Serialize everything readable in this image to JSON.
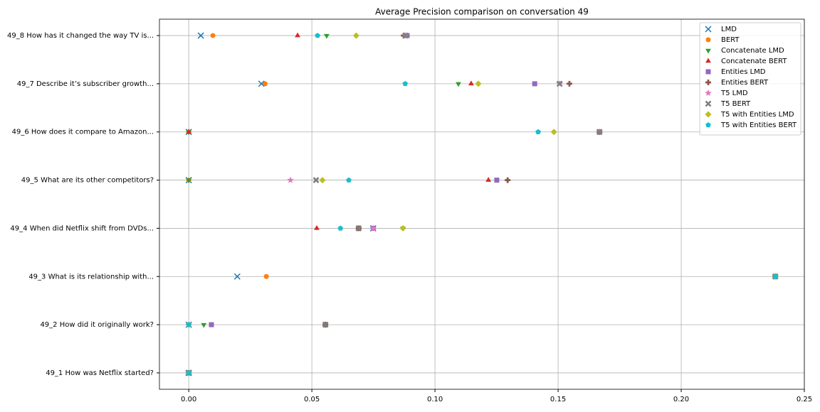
{
  "chart_data": {
    "type": "scatter",
    "title": "Average Precision comparison on conversation 49",
    "categories": [
      "49_1 How was Netflix started?",
      "49_2 How did it originally work?",
      "49_3 What is its relationship with...",
      "49_4 When did Netflix shift from DVDs...",
      "49_5 What are its other competitors?",
      "49_6 How does it compare to Amazon...",
      "49_7 Describe it’s subscriber growth...",
      "49_8 How has it changed the way TV is..."
    ],
    "xlim": [
      -0.0119,
      0.25
    ],
    "xticks": [
      {
        "value": 0,
        "label": "0.00"
      },
      {
        "value": 0.05,
        "label": "0.05"
      },
      {
        "value": 0.1,
        "label": "0.10"
      },
      {
        "value": 0.15,
        "label": "0.15"
      },
      {
        "value": 0.2,
        "label": "0.20"
      },
      {
        "value": 0.25,
        "label": "0.25"
      }
    ],
    "grid": true,
    "legend": "upper right",
    "series": [
      {
        "name": "LMD",
        "color": "#1f77b4",
        "marker": "x",
        "values": [
          0,
          0,
          0.0197,
          0.0749,
          0,
          0,
          0.0295,
          0.0049
        ]
      },
      {
        "name": "BERT",
        "color": "#ff7f0e",
        "marker": "o",
        "values": [
          0,
          0,
          0.0315,
          0.069,
          0,
          0,
          0.031,
          0.0098
        ]
      },
      {
        "name": "Concatenate LMD",
        "color": "#2ca02c",
        "marker": "v",
        "values": [
          0,
          0.0061,
          0.2382,
          0.087,
          0,
          0,
          0.1095,
          0.056
        ]
      },
      {
        "name": "Concatenate BERT",
        "color": "#d62728",
        "marker": "^",
        "values": [
          0,
          0.0555,
          0.2382,
          0.052,
          0.1217,
          0,
          0.1147,
          0.0442
        ]
      },
      {
        "name": "Entities LMD",
        "color": "#9467bd",
        "marker": "s",
        "values": [
          0,
          0.0092,
          0.2382,
          0.0749,
          0.1251,
          0.1668,
          0.1405,
          0.0887
        ]
      },
      {
        "name": "Entities BERT",
        "color": "#8c564b",
        "marker": "P",
        "values": [
          0,
          0.0555,
          0.2382,
          0.069,
          0.1295,
          0.1668,
          0.1546,
          0.0873
        ]
      },
      {
        "name": "T5 LMD",
        "color": "#e377c2",
        "marker": "*",
        "values": [
          0,
          0,
          0.2382,
          0.0749,
          0.0413,
          0.1668,
          0.1506,
          0.088
        ]
      },
      {
        "name": "T5 BERT",
        "color": "#7f7f7f",
        "marker": "X",
        "values": [
          0,
          0.0555,
          0.2382,
          0.069,
          0.0517,
          0.1668,
          0.1506,
          0.088
        ]
      },
      {
        "name": "T5 with Entities LMD",
        "color": "#bcbd22",
        "marker": "D",
        "values": [
          0,
          0,
          0.2382,
          0.087,
          0.0543,
          0.1483,
          0.1176,
          0.068
        ]
      },
      {
        "name": "T5 with Entities BERT",
        "color": "#17becf",
        "marker": "p",
        "values": [
          0,
          0,
          0.2382,
          0.0616,
          0.065,
          0.1419,
          0.0879,
          0.0523
        ]
      }
    ]
  }
}
